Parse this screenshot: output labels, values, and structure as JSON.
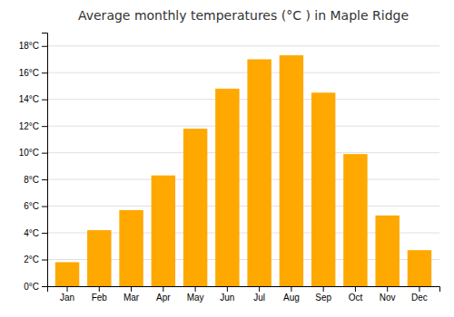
{
  "chart_data": {
    "type": "bar",
    "title": "Average monthly temperatures (°C ) in Maple Ridge",
    "categories": [
      "Jan",
      "Feb",
      "Mar",
      "Apr",
      "May",
      "Jun",
      "Jul",
      "Aug",
      "Sep",
      "Oct",
      "Nov",
      "Dec"
    ],
    "values": [
      1.8,
      4.2,
      5.7,
      8.3,
      11.8,
      14.8,
      17.0,
      17.3,
      14.5,
      9.9,
      5.3,
      2.7
    ],
    "color": "#FFA800",
    "ylim": [
      0,
      19
    ],
    "yticks": [
      {
        "value": 0,
        "label": "0°C"
      },
      {
        "value": 2,
        "label": "2°C"
      },
      {
        "value": 4,
        "label": "4°C"
      },
      {
        "value": 6,
        "label": "6°C"
      },
      {
        "value": 8,
        "label": "8°C"
      },
      {
        "value": 10,
        "label": "10°C"
      },
      {
        "value": 12,
        "label": "12°C"
      },
      {
        "value": 14,
        "label": "14°C"
      },
      {
        "value": 16,
        "label": "16°C"
      },
      {
        "value": 18,
        "label": "18°C"
      }
    ],
    "grid": true
  }
}
